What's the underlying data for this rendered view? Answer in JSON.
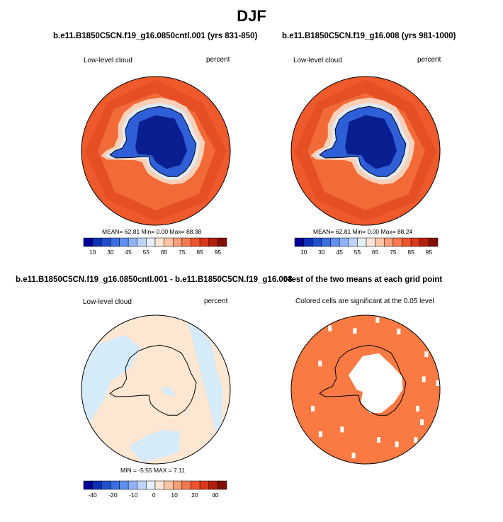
{
  "figure": {
    "title": "DJF"
  },
  "colors": {
    "continent_outline": "#000000",
    "land_ice_blue": "#0a1f8f",
    "ocean_red": "#e8542a",
    "significance_fill": "#fb7a44",
    "diff_neg_light": "#d6ebfa",
    "diff_pos_light": "#fde6d2"
  },
  "panels": [
    {
      "id": "control",
      "title": "b.e11.B1850C5CN.f19_g16.0850cntl.001 (yrs 831-850)",
      "left_label": "Low-level cloud",
      "right_label": "percent",
      "stats": {
        "mean_label": "MEAN=",
        "mean": "62.81",
        "min_label": "Min=",
        "min": "0.00",
        "max_label": "Max=",
        "max": "88.38"
      }
    },
    {
      "id": "experiment",
      "title": "b.e11.B1850C5CN.f19_g16.008 (yrs 981-1000)",
      "left_label": "Low-level cloud",
      "right_label": "percent",
      "stats": {
        "mean_label": "MEAN=",
        "mean": "62.81",
        "min_label": "Min=",
        "min": "0.00",
        "max_label": "Max=",
        "max": "88.24"
      }
    },
    {
      "id": "difference",
      "title": "b.e11.B1850C5CN.f19_g16.0850cntl.001 - b.e11.B1850C5CN.f19_g16.008",
      "left_label": "Low-level cloud",
      "right_label": "percent",
      "stats_text": "MIN = -5.55 MAX = 7.11"
    },
    {
      "id": "ttest",
      "title": "t-test of the two means at each grid point",
      "subtitle": "Colored cells are significant at the 0.05 level"
    }
  ],
  "chart_data": [
    {
      "type": "heatmap",
      "projection": "south polar stereographic",
      "title": "b.e11.B1850C5CN.f19_g16.0850cntl.001 (yrs 831-850)",
      "variable": "Low-level cloud",
      "units": "percent",
      "mean": 62.81,
      "min": 0.0,
      "max": 88.38,
      "colorbar_ticks": [
        "10",
        "30",
        "45",
        "55",
        "65",
        "75",
        "85",
        "95"
      ],
      "colorbar_colors": [
        "#000096",
        "#0f2fb4",
        "#1f4fcc",
        "#3b6ee0",
        "#5f8ff0",
        "#8db2f8",
        "#bcd4fb",
        "#e6f0fc",
        "#fde4d4",
        "#fcc3a6",
        "#fa9f78",
        "#f7794f",
        "#ef5530",
        "#d9381c",
        "#b31f0d",
        "#800f05"
      ]
    },
    {
      "type": "heatmap",
      "projection": "south polar stereographic",
      "title": "b.e11.B1850C5CN.f19_g16.008 (yrs 981-1000)",
      "variable": "Low-level cloud",
      "units": "percent",
      "mean": 62.81,
      "min": 0.0,
      "max": 88.24,
      "colorbar_ticks": [
        "10",
        "30",
        "45",
        "55",
        "65",
        "75",
        "85",
        "95"
      ],
      "colorbar_colors": [
        "#000096",
        "#0f2fb4",
        "#1f4fcc",
        "#3b6ee0",
        "#5f8ff0",
        "#8db2f8",
        "#bcd4fb",
        "#e6f0fc",
        "#fde4d4",
        "#fcc3a6",
        "#fa9f78",
        "#f7794f",
        "#ef5530",
        "#d9381c",
        "#b31f0d",
        "#800f05"
      ]
    },
    {
      "type": "heatmap",
      "projection": "south polar stereographic",
      "title": "b.e11.B1850C5CN.f19_g16.0850cntl.001 - b.e11.B1850C5CN.f19_g16.008",
      "variable": "Low-level cloud",
      "units": "percent",
      "min": -5.55,
      "max": 7.11,
      "colorbar_ticks": [
        "-40",
        "-20",
        "-10",
        "0",
        "10",
        "20",
        "40"
      ],
      "colorbar_colors": [
        "#000096",
        "#0f2fb4",
        "#1f4fcc",
        "#3b6ee0",
        "#5f8ff0",
        "#8db2f8",
        "#bcd4fb",
        "#e6f0fc",
        "#fde4d4",
        "#fcc3a6",
        "#fa9f78",
        "#f7794f",
        "#ef5530",
        "#d9381c",
        "#b31f0d",
        "#800f05"
      ]
    },
    {
      "type": "heatmap",
      "projection": "south polar stereographic",
      "title": "t-test of the two means at each grid point",
      "subtitle": "Colored cells are significant at the 0.05 level",
      "significance_level": 0.05
    }
  ]
}
